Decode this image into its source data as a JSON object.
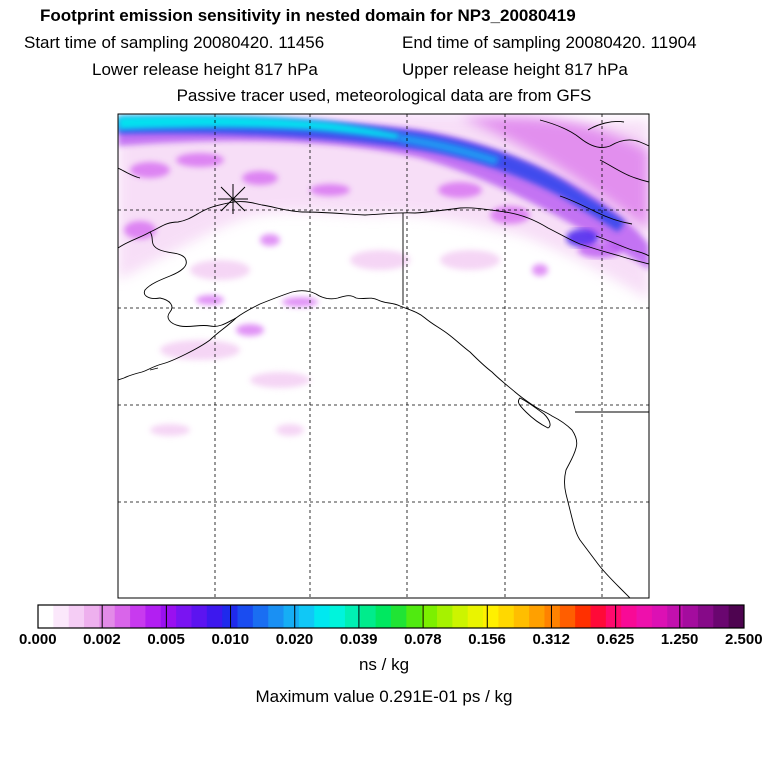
{
  "header": {
    "title": "Footprint emission sensitivity in nested domain for NP3_20080419",
    "start_time": "Start time of sampling 20080420. 11456",
    "end_time": "End time of sampling 20080420. 11904",
    "lower_height": "Lower release height  817 hPa",
    "upper_height": "Upper release height  817 hPa",
    "tracer_info": "Passive tracer used, meteorological data are from GFS"
  },
  "map": {
    "features": [
      "coastline",
      "lat-lon-grid",
      "release-location-marker",
      "emission-sensitivity-field"
    ]
  },
  "legend": {
    "labels": [
      "0.000",
      "0.002",
      "0.005",
      "0.010",
      "0.020",
      "0.039",
      "0.078",
      "0.156",
      "0.312",
      "0.625",
      "1.250",
      "2.500"
    ],
    "colors": [
      "#ffffff",
      "#fbe8fb",
      "#f5cdf5",
      "#eeb0ee",
      "#e38be8",
      "#d965ea",
      "#c83aef",
      "#b21ff2",
      "#9a10f0",
      "#7a14f2",
      "#5c14f0",
      "#3d18ee",
      "#1f2aec",
      "#1a4cf0",
      "#1a6ef2",
      "#1a90f3",
      "#16aef5",
      "#10c8f6",
      "#00e8f0",
      "#00f4dc",
      "#00f0b4",
      "#00ec8c",
      "#00e860",
      "#20e434",
      "#50ea10",
      "#7cf000",
      "#a6f200",
      "#ccf400",
      "#eaf400",
      "#fff000",
      "#ffd800",
      "#ffbe00",
      "#ffa000",
      "#ff8200",
      "#ff5e00",
      "#ff3000",
      "#ff0a38",
      "#ff0a6e",
      "#f80a96",
      "#ee10ac",
      "#dc10b4",
      "#c210ae",
      "#a40c9e",
      "#860a88",
      "#6a0670",
      "#4e0450"
    ],
    "units": "ns / kg",
    "max_value": "Maximum value  0.291E-01 ps / kg"
  }
}
